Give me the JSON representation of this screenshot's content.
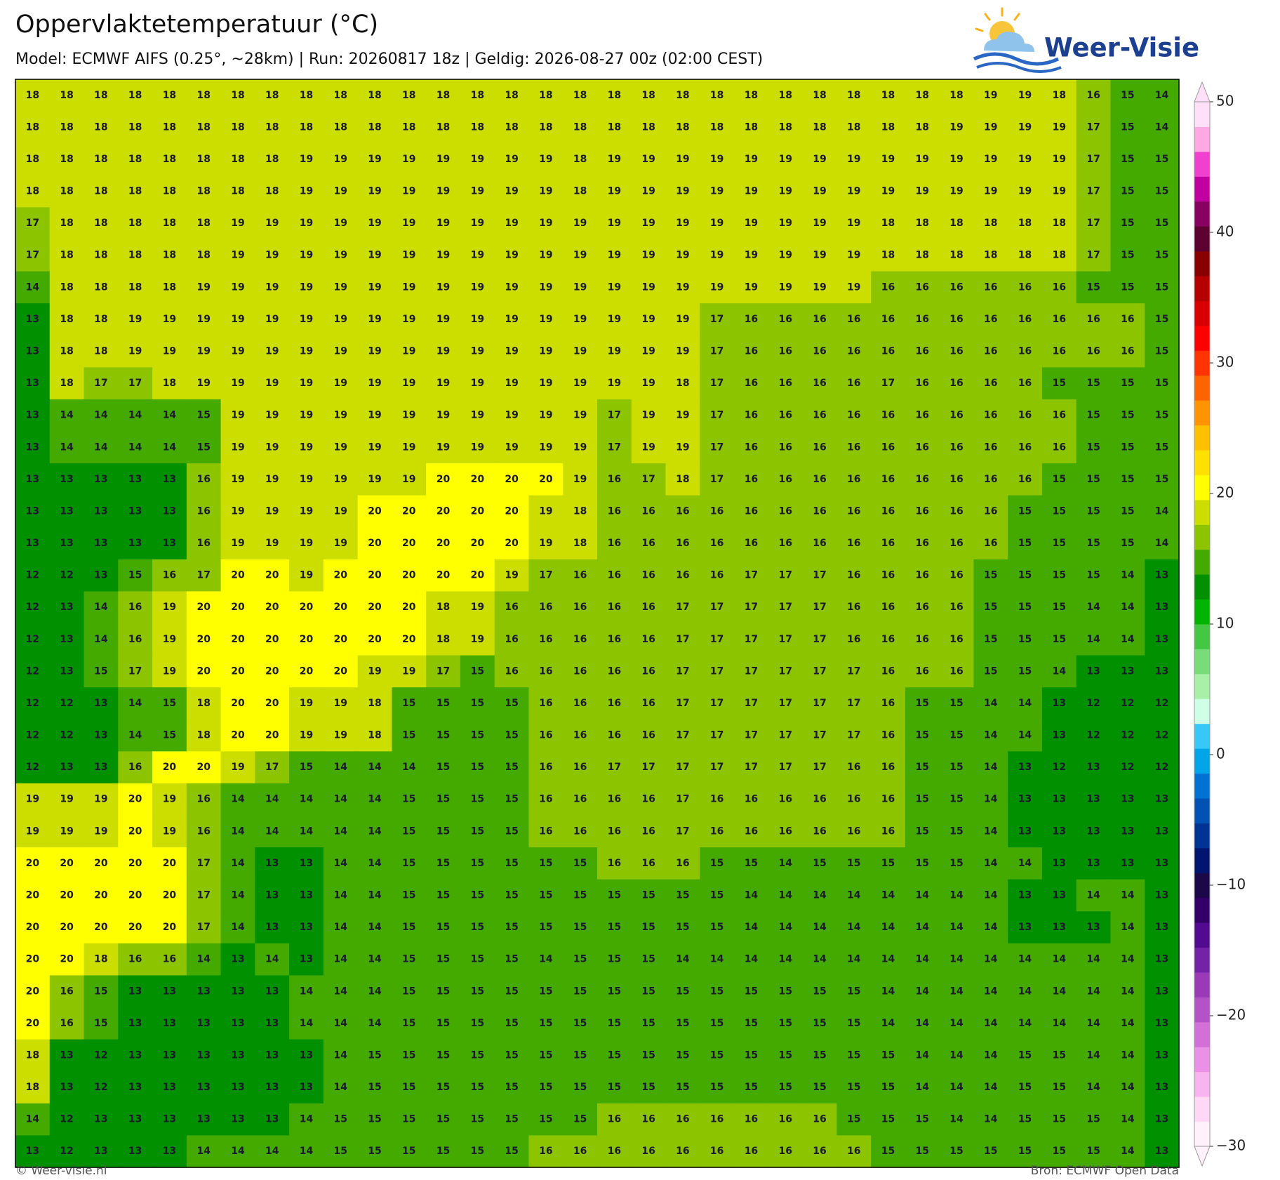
{
  "header": {
    "title": "Oppervlaktetemperatuur (°C)",
    "subtitle": "Model: ECMWF AIFS (0.25°, ~28km)  |  Run: 20260817 18z  |  Geldig: 2026-08-27 00z (02:00 CEST)"
  },
  "logo": "Weer-Visie",
  "map": {
    "grid": [
      [
        18,
        18,
        18,
        18,
        18,
        18,
        18,
        18,
        18,
        18,
        18,
        18,
        18,
        18,
        18,
        18,
        18,
        18,
        18,
        18,
        18,
        18,
        18,
        18,
        18,
        18,
        18,
        18,
        19,
        19,
        18,
        16,
        15,
        14
      ],
      [
        18,
        18,
        18,
        18,
        18,
        18,
        18,
        18,
        18,
        18,
        18,
        18,
        18,
        18,
        18,
        18,
        18,
        18,
        18,
        18,
        18,
        18,
        18,
        18,
        18,
        18,
        18,
        19,
        19,
        19,
        19,
        17,
        15,
        14
      ],
      [
        18,
        18,
        18,
        18,
        18,
        18,
        18,
        18,
        19,
        19,
        19,
        19,
        19,
        19,
        19,
        19,
        18,
        19,
        19,
        19,
        19,
        19,
        19,
        19,
        19,
        19,
        19,
        19,
        19,
        19,
        19,
        17,
        15,
        15
      ],
      [
        18,
        18,
        18,
        18,
        18,
        18,
        18,
        18,
        19,
        19,
        19,
        19,
        19,
        19,
        19,
        19,
        18,
        19,
        19,
        19,
        19,
        19,
        19,
        19,
        19,
        19,
        19,
        19,
        19,
        19,
        19,
        17,
        15,
        15
      ],
      [
        17,
        18,
        18,
        18,
        18,
        18,
        19,
        19,
        19,
        19,
        19,
        19,
        19,
        19,
        19,
        19,
        19,
        19,
        19,
        19,
        19,
        19,
        19,
        19,
        19,
        18,
        18,
        18,
        18,
        18,
        18,
        17,
        15,
        15
      ],
      [
        17,
        18,
        18,
        18,
        18,
        18,
        19,
        19,
        19,
        19,
        19,
        19,
        19,
        19,
        19,
        19,
        19,
        19,
        19,
        19,
        19,
        19,
        19,
        19,
        19,
        18,
        18,
        18,
        18,
        18,
        18,
        17,
        15,
        15
      ],
      [
        14,
        18,
        18,
        18,
        18,
        19,
        19,
        19,
        19,
        19,
        19,
        19,
        19,
        19,
        19,
        19,
        19,
        19,
        19,
        19,
        19,
        19,
        19,
        19,
        19,
        16,
        16,
        16,
        16,
        16,
        16,
        15,
        15,
        15
      ],
      [
        13,
        18,
        18,
        19,
        19,
        19,
        19,
        19,
        19,
        19,
        19,
        19,
        19,
        19,
        19,
        19,
        19,
        19,
        19,
        19,
        17,
        16,
        16,
        16,
        16,
        16,
        16,
        16,
        16,
        16,
        16,
        16,
        16,
        15
      ],
      [
        13,
        18,
        18,
        19,
        19,
        19,
        19,
        19,
        19,
        19,
        19,
        19,
        19,
        19,
        19,
        19,
        19,
        19,
        19,
        19,
        17,
        16,
        16,
        16,
        16,
        16,
        16,
        16,
        16,
        16,
        16,
        16,
        16,
        15
      ],
      [
        13,
        18,
        17,
        17,
        18,
        19,
        19,
        19,
        19,
        19,
        19,
        19,
        19,
        19,
        19,
        19,
        19,
        19,
        19,
        18,
        17,
        16,
        16,
        16,
        16,
        17,
        16,
        16,
        16,
        16,
        15,
        15,
        15,
        15
      ],
      [
        13,
        14,
        14,
        14,
        14,
        15,
        19,
        19,
        19,
        19,
        19,
        19,
        19,
        19,
        19,
        19,
        19,
        17,
        19,
        19,
        17,
        16,
        16,
        16,
        16,
        16,
        16,
        16,
        16,
        16,
        16,
        15,
        15,
        15
      ],
      [
        13,
        14,
        14,
        14,
        14,
        15,
        19,
        19,
        19,
        19,
        19,
        19,
        19,
        19,
        19,
        19,
        19,
        17,
        19,
        19,
        17,
        16,
        16,
        16,
        16,
        16,
        16,
        16,
        16,
        16,
        16,
        15,
        15,
        15
      ],
      [
        13,
        13,
        13,
        13,
        13,
        16,
        19,
        19,
        19,
        19,
        19,
        19,
        20,
        20,
        20,
        20,
        19,
        16,
        17,
        18,
        17,
        16,
        16,
        16,
        16,
        16,
        16,
        16,
        16,
        16,
        15,
        15,
        15,
        15
      ],
      [
        13,
        13,
        13,
        13,
        13,
        16,
        19,
        19,
        19,
        19,
        20,
        20,
        20,
        20,
        20,
        19,
        18,
        16,
        16,
        16,
        16,
        16,
        16,
        16,
        16,
        16,
        16,
        16,
        16,
        15,
        15,
        15,
        15,
        14
      ],
      [
        13,
        13,
        13,
        13,
        13,
        16,
        19,
        19,
        19,
        19,
        20,
        20,
        20,
        20,
        20,
        19,
        18,
        16,
        16,
        16,
        16,
        16,
        16,
        16,
        16,
        16,
        16,
        16,
        16,
        15,
        15,
        15,
        15,
        14
      ],
      [
        12,
        12,
        13,
        15,
        16,
        17,
        20,
        20,
        19,
        20,
        20,
        20,
        20,
        20,
        19,
        17,
        16,
        16,
        16,
        16,
        16,
        17,
        17,
        17,
        16,
        16,
        16,
        16,
        15,
        15,
        15,
        15,
        14,
        13
      ],
      [
        12,
        13,
        14,
        16,
        19,
        20,
        20,
        20,
        20,
        20,
        20,
        20,
        18,
        19,
        16,
        16,
        16,
        16,
        16,
        17,
        17,
        17,
        17,
        17,
        16,
        16,
        16,
        16,
        15,
        15,
        15,
        14,
        14,
        13
      ],
      [
        12,
        13,
        14,
        16,
        19,
        20,
        20,
        20,
        20,
        20,
        20,
        20,
        18,
        19,
        16,
        16,
        16,
        16,
        16,
        17,
        17,
        17,
        17,
        17,
        16,
        16,
        16,
        16,
        15,
        15,
        15,
        14,
        14,
        13
      ],
      [
        12,
        13,
        15,
        17,
        19,
        20,
        20,
        20,
        20,
        20,
        19,
        19,
        17,
        15,
        16,
        16,
        16,
        16,
        16,
        17,
        17,
        17,
        17,
        17,
        17,
        16,
        16,
        16,
        15,
        15,
        14,
        13,
        13,
        13
      ],
      [
        12,
        12,
        13,
        14,
        15,
        18,
        20,
        20,
        19,
        19,
        18,
        15,
        15,
        15,
        15,
        16,
        16,
        16,
        16,
        17,
        17,
        17,
        17,
        17,
        17,
        16,
        15,
        15,
        14,
        14,
        13,
        12,
        12,
        12
      ],
      [
        12,
        12,
        13,
        14,
        15,
        18,
        20,
        20,
        19,
        19,
        18,
        15,
        15,
        15,
        15,
        16,
        16,
        16,
        16,
        17,
        17,
        17,
        17,
        17,
        17,
        16,
        15,
        15,
        14,
        14,
        13,
        12,
        12,
        12
      ],
      [
        12,
        13,
        13,
        16,
        20,
        20,
        19,
        17,
        15,
        14,
        14,
        14,
        15,
        15,
        15,
        16,
        16,
        17,
        17,
        17,
        17,
        17,
        17,
        17,
        16,
        16,
        15,
        15,
        14,
        13,
        12,
        13,
        12,
        12
      ],
      [
        19,
        19,
        19,
        20,
        19,
        16,
        14,
        14,
        14,
        14,
        14,
        15,
        15,
        15,
        15,
        16,
        16,
        16,
        16,
        17,
        16,
        16,
        16,
        16,
        16,
        16,
        15,
        15,
        14,
        13,
        13,
        13,
        13,
        13
      ],
      [
        19,
        19,
        19,
        20,
        19,
        16,
        14,
        14,
        14,
        14,
        14,
        15,
        15,
        15,
        15,
        16,
        16,
        16,
        16,
        17,
        16,
        16,
        16,
        16,
        16,
        16,
        15,
        15,
        14,
        13,
        13,
        13,
        13,
        13
      ],
      [
        20,
        20,
        20,
        20,
        20,
        17,
        14,
        13,
        13,
        14,
        14,
        15,
        15,
        15,
        15,
        15,
        15,
        16,
        16,
        16,
        15,
        15,
        14,
        15,
        15,
        15,
        15,
        15,
        14,
        14,
        13,
        13,
        13,
        13
      ],
      [
        20,
        20,
        20,
        20,
        20,
        17,
        14,
        13,
        13,
        14,
        14,
        15,
        15,
        15,
        15,
        15,
        15,
        15,
        15,
        15,
        15,
        14,
        14,
        14,
        14,
        14,
        14,
        14,
        14,
        13,
        13,
        14,
        14,
        13
      ],
      [
        20,
        20,
        20,
        20,
        20,
        17,
        14,
        13,
        13,
        14,
        14,
        15,
        15,
        15,
        15,
        15,
        15,
        15,
        15,
        15,
        15,
        14,
        14,
        14,
        14,
        14,
        14,
        14,
        14,
        13,
        13,
        13,
        14,
        13
      ],
      [
        20,
        20,
        18,
        16,
        16,
        14,
        13,
        14,
        13,
        14,
        14,
        15,
        15,
        15,
        15,
        14,
        15,
        15,
        15,
        14,
        14,
        14,
        14,
        14,
        14,
        14,
        14,
        14,
        14,
        14,
        14,
        14,
        14,
        13
      ],
      [
        20,
        16,
        15,
        13,
        13,
        13,
        13,
        13,
        14,
        14,
        14,
        15,
        15,
        15,
        15,
        15,
        15,
        15,
        15,
        15,
        15,
        15,
        15,
        15,
        15,
        14,
        14,
        14,
        14,
        14,
        14,
        14,
        14,
        13
      ],
      [
        20,
        16,
        15,
        13,
        13,
        13,
        13,
        13,
        14,
        14,
        14,
        15,
        15,
        15,
        15,
        15,
        15,
        15,
        15,
        15,
        15,
        15,
        15,
        15,
        15,
        14,
        14,
        14,
        14,
        14,
        14,
        14,
        14,
        13
      ],
      [
        18,
        13,
        12,
        13,
        13,
        13,
        13,
        13,
        13,
        14,
        15,
        15,
        15,
        15,
        15,
        15,
        15,
        15,
        15,
        15,
        15,
        15,
        15,
        15,
        15,
        15,
        14,
        14,
        14,
        15,
        15,
        14,
        14,
        13
      ],
      [
        18,
        13,
        12,
        13,
        13,
        13,
        13,
        13,
        13,
        14,
        15,
        15,
        15,
        15,
        15,
        15,
        15,
        15,
        15,
        15,
        15,
        15,
        15,
        15,
        15,
        15,
        14,
        14,
        14,
        15,
        15,
        14,
        14,
        13
      ],
      [
        14,
        12,
        13,
        13,
        13,
        13,
        13,
        13,
        14,
        15,
        15,
        15,
        15,
        15,
        15,
        15,
        15,
        16,
        16,
        16,
        16,
        16,
        16,
        16,
        15,
        15,
        15,
        14,
        14,
        15,
        15,
        15,
        14,
        13
      ],
      [
        13,
        12,
        13,
        13,
        13,
        14,
        14,
        14,
        14,
        15,
        15,
        15,
        15,
        15,
        15,
        16,
        16,
        16,
        16,
        16,
        16,
        16,
        16,
        16,
        16,
        15,
        15,
        15,
        15,
        15,
        15,
        15,
        14,
        13
      ]
    ]
  },
  "colorbar": {
    "clim": [
      -30,
      50
    ],
    "ticks": [
      50,
      40,
      30,
      20,
      10,
      0,
      {
        "value": -10,
        "label": "−10"
      },
      {
        "value": -20,
        "label": "−20"
      },
      {
        "value": -30,
        "label": "−30"
      }
    ],
    "colors": [
      "#fff0fa",
      "#ffd8f6",
      "#f8b4ee",
      "#ea90e6",
      "#d270d8",
      "#b452c8",
      "#9a3ab8",
      "#7422a8",
      "#520a90",
      "#320068",
      "#1a0848",
      "#001470",
      "#003494",
      "#0052b4",
      "#0072d4",
      "#00a4e8",
      "#38c8f8",
      "#d0ffe8",
      "#a8f0a8",
      "#78dc78",
      "#44c844",
      "#00b400",
      "#009000",
      "#44aa00",
      "#8cc400",
      "#ccdd00",
      "#ffff00",
      "#ffe000",
      "#ffc000",
      "#ff9400",
      "#ff6400",
      "#ff3400",
      "#ff0000",
      "#d80000",
      "#b40000",
      "#880000",
      "#5c0030",
      "#880060",
      "#c000a0",
      "#f040d0",
      "#ffa8e4",
      "#ffe0f8"
    ]
  },
  "footer": {
    "credit": "© Weer-visie.nl",
    "source": "Bron: ECMWF Open Data"
  }
}
